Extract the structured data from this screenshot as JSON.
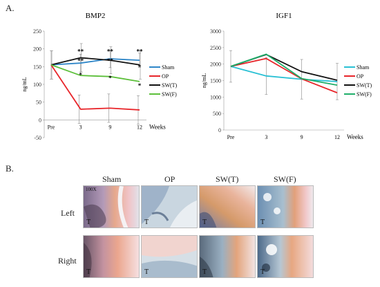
{
  "panel_a_label": "A.",
  "panel_b_label": "B.",
  "colors": {
    "Sham": "#2e86c8",
    "OP": "#e8252a",
    "SW(T)": "#111111",
    "SW(F)": "#5cbf3a",
    "Sham_igf": "#29c0d4",
    "SW(F)_igf": "#1fae6a"
  },
  "chart_data": [
    {
      "type": "line",
      "title": "BMP2",
      "ylabel": "ng/mL",
      "xlabel": "Weeks",
      "categories": [
        "Pre",
        "3",
        "9",
        "12"
      ],
      "ylim": [
        -50,
        250
      ],
      "yticks": [
        -50,
        0,
        50,
        100,
        150,
        200,
        250
      ],
      "series": [
        {
          "name": "Sham",
          "values": [
            155,
            160,
            172,
            168
          ],
          "color": "#2e86c8"
        },
        {
          "name": "OP",
          "values": [
            155,
            30,
            33,
            28
          ],
          "color": "#e8252a"
        },
        {
          "name": "SW(T)",
          "values": [
            155,
            175,
            168,
            155
          ],
          "color": "#111111"
        },
        {
          "name": "SW(F)",
          "values": [
            155,
            125,
            122,
            108
          ],
          "color": "#5cbf3a"
        }
      ],
      "error_bars": [
        {
          "series": "Sham",
          "values": [
            40,
            25,
            25,
            20
          ]
        },
        {
          "series": "SW(T)",
          "values": [
            40,
            40,
            38,
            40
          ]
        },
        {
          "series": "OP",
          "values": [
            0,
            40,
            40,
            40
          ]
        }
      ],
      "annotations": [
        {
          "x": "3",
          "y": 187,
          "text": "**"
        },
        {
          "x": "3",
          "y": 160,
          "text": "**"
        },
        {
          "x": "3",
          "y": 120,
          "text": "*"
        },
        {
          "x": "9",
          "y": 187,
          "text": "**"
        },
        {
          "x": "9",
          "y": 160,
          "text": "**"
        },
        {
          "x": "9",
          "y": 112,
          "text": "*"
        },
        {
          "x": "12",
          "y": 187,
          "text": "**"
        },
        {
          "x": "12",
          "y": 143,
          "text": "*"
        },
        {
          "x": "12",
          "y": 90,
          "text": "*"
        }
      ],
      "legend": "right"
    },
    {
      "type": "line",
      "title": "IGF1",
      "ylabel": "ng/mL",
      "xlabel": "Weeks",
      "categories": [
        "Pre",
        "3",
        "9",
        "12"
      ],
      "ylim": [
        0,
        3000
      ],
      "yticks": [
        0,
        500,
        1000,
        1500,
        2000,
        2500,
        3000
      ],
      "series": [
        {
          "name": "Sham",
          "values": [
            1930,
            1640,
            1540,
            1470
          ],
          "color": "#29c0d4"
        },
        {
          "name": "OP",
          "values": [
            1930,
            2170,
            1550,
            1130
          ],
          "color": "#e8252a"
        },
        {
          "name": "SW(T)",
          "values": [
            1930,
            2290,
            1770,
            1510
          ],
          "color": "#111111"
        },
        {
          "name": "SW(F)",
          "values": [
            1930,
            2300,
            1560,
            1360
          ],
          "color": "#1fae6a"
        }
      ],
      "error_bars": [
        {
          "series": "Sham",
          "values": [
            480,
            560,
            600,
            550
          ]
        }
      ],
      "legend": "right"
    }
  ],
  "histology": {
    "columns": [
      "Sham",
      "OP",
      "SW(T)",
      "SW(F)"
    ],
    "rows": [
      "Left",
      "Right"
    ],
    "magnification": "100X",
    "tissue_tag": "T"
  }
}
